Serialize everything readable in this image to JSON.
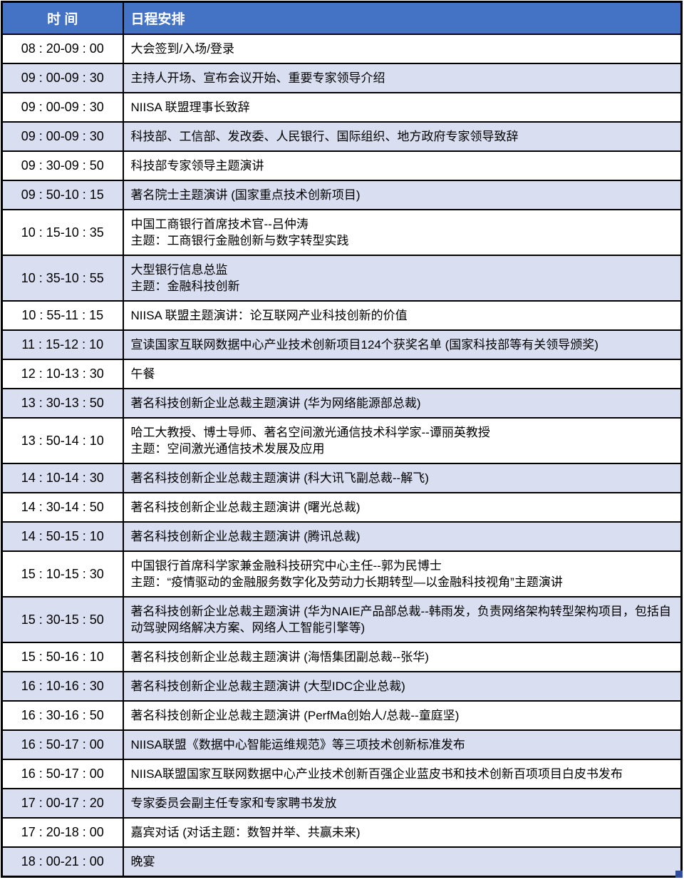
{
  "colors": {
    "header_bg": "#4472C4",
    "header_text": "#FFFFFF",
    "row_alt_bg": "#D9DEF0",
    "border": "#000000",
    "fill_handle": "#2E4C9B"
  },
  "header": {
    "time": "时 间",
    "agenda": "日程安排"
  },
  "rows": [
    {
      "time": "08 : 20-09 : 00",
      "lines": [
        "大会签到/入场/登录"
      ]
    },
    {
      "time": "09 : 00-09 : 30",
      "lines": [
        "主持人开场、宣布会议开始、重要专家领导介绍"
      ]
    },
    {
      "time": "09 : 00-09 : 30",
      "lines": [
        "NIISA 联盟理事长致辞"
      ]
    },
    {
      "time": "09 : 00-09 : 30",
      "lines": [
        "科技部、工信部、发改委、人民银行、国际组织、地方政府专家领导致辞"
      ]
    },
    {
      "time": "09 : 30-09 : 50",
      "lines": [
        "科技部专家领导主题演讲"
      ]
    },
    {
      "time": "09 : 50-10 : 15",
      "lines": [
        "著名院士主题演讲 (国家重点技术创新项目)"
      ]
    },
    {
      "time": "10 : 15-10 : 35",
      "lines": [
        "中国工商银行首席技术官--吕仲涛",
        "主题：工商银行金融创新与数字转型实践"
      ]
    },
    {
      "time": "10 : 35-10 : 55",
      "lines": [
        "大型银行信息总监",
        "主题：金融科技创新"
      ]
    },
    {
      "time": "10 : 55-11 : 15",
      "lines": [
        "NIISA 联盟主题演讲：论互联网产业科技创新的价值"
      ]
    },
    {
      "time": "11 : 15-12 : 10",
      "lines": [
        "宣读国家互联网数据中心产业技术创新项目124个获奖名单 (国家科技部等有关领导颁奖)"
      ]
    },
    {
      "time": "12 : 10-13 : 30",
      "lines": [
        "午餐"
      ]
    },
    {
      "time": "13 : 30-13 : 50",
      "lines": [
        "著名科技创新企业总裁主题演讲 (华为网络能源部总裁)"
      ]
    },
    {
      "time": "13 : 50-14 : 10",
      "lines": [
        "哈工大教授、博士导师、著名空间激光通信技术科学家--谭丽英教授",
        "主题：空间激光通信技术发展及应用"
      ]
    },
    {
      "time": "14 : 10-14 : 30",
      "lines": [
        "著名科技创新企业总裁主题演讲 (科大讯飞副总裁--解飞)"
      ]
    },
    {
      "time": "14 : 30-14 : 50",
      "lines": [
        "著名科技创新企业总裁主题演讲 (曙光总裁)"
      ]
    },
    {
      "time": "14 : 50-15 : 10",
      "lines": [
        "著名科技创新企业总裁主题演讲 (腾讯总裁)"
      ]
    },
    {
      "time": "15 : 10-15 : 30",
      "lines": [
        "中国银行首席科学家兼金融科技研究中心主任--郭为民博士",
        "主题：“疫情驱动的金融服务数字化及劳动力长期转型—以金融科技视角”主题演讲"
      ]
    },
    {
      "time": "15 : 30-15 : 50",
      "lines": [
        "著名科技创新企业总裁主题演讲 (华为NAIE产品部总裁--韩雨发，负责网络架构转型架构项目，包括自动驾驶网络解决方案、网络人工智能引擎等)"
      ]
    },
    {
      "time": "15 : 50-16 : 10",
      "lines": [
        "著名科技创新企业总裁主题演讲 (海悟集团副总裁--张华)"
      ]
    },
    {
      "time": "16 : 10-16 : 30",
      "lines": [
        "著名科技创新企业总裁主题演讲 (大型IDC企业总裁)"
      ]
    },
    {
      "time": "16 : 30-16 : 50",
      "lines": [
        "著名科技创新企业总裁主题演讲 (PerfMa创始人/总裁--童庭坚)"
      ]
    },
    {
      "time": "16 : 50-17 : 00",
      "lines": [
        "NIISA联盟《数据中心智能运维规范》等三项技术创新标准发布"
      ]
    },
    {
      "time": "16 : 50-17 : 00",
      "lines": [
        "NIISA联盟国家互联网数据中心产业技术创新百强企业蓝皮书和技术创新百项项目白皮书发布"
      ]
    },
    {
      "time": "17 : 00-17 : 20",
      "lines": [
        "专家委员会副主任专家和专家聘书发放"
      ]
    },
    {
      "time": "17 : 20-18 : 00",
      "lines": [
        "嘉宾对话 (对话主题：数智并举、共赢未来)"
      ]
    },
    {
      "time": "18 : 00-21 : 00",
      "lines": [
        "晚宴"
      ]
    }
  ]
}
